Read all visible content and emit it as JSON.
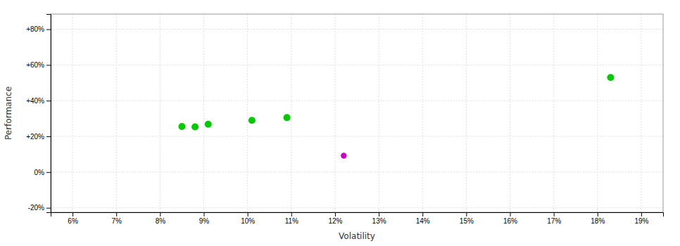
{
  "chart_data": {
    "type": "scatter",
    "xlabel": "Volatility",
    "ylabel": "Performance",
    "xlim": [
      0.055,
      0.195
    ],
    "ylim": [
      -0.225,
      0.885
    ],
    "xticks": [
      {
        "value": 0.06,
        "label": "6%"
      },
      {
        "value": 0.07,
        "label": "7%"
      },
      {
        "value": 0.08,
        "label": "8%"
      },
      {
        "value": 0.09,
        "label": "9%"
      },
      {
        "value": 0.1,
        "label": "10%"
      },
      {
        "value": 0.11,
        "label": "11%"
      },
      {
        "value": 0.12,
        "label": "12%"
      },
      {
        "value": 0.13,
        "label": "13%"
      },
      {
        "value": 0.14,
        "label": "14%"
      },
      {
        "value": 0.15,
        "label": "15%"
      },
      {
        "value": 0.16,
        "label": "16%"
      },
      {
        "value": 0.17,
        "label": "17%"
      },
      {
        "value": 0.18,
        "label": "18%"
      },
      {
        "value": 0.19,
        "label": "19%"
      }
    ],
    "yticks": [
      {
        "value": -0.2,
        "label": "-20%"
      },
      {
        "value": 0.0,
        "label": "0%"
      },
      {
        "value": 0.2,
        "label": "+20%"
      },
      {
        "value": 0.4,
        "label": "+40%"
      },
      {
        "value": 0.6,
        "label": "+60%"
      },
      {
        "value": 0.8,
        "label": "+80%"
      }
    ],
    "grid": true,
    "series": [
      {
        "color": "#00cc00",
        "x": [
          0.085,
          0.088,
          0.091,
          0.101,
          0.109,
          0.183
        ],
        "values": [
          0.255,
          0.253,
          0.268,
          0.29,
          0.305,
          0.53
        ]
      },
      {
        "color": "#cc00cc",
        "x": [
          0.122
        ],
        "values": [
          0.092
        ]
      }
    ]
  }
}
